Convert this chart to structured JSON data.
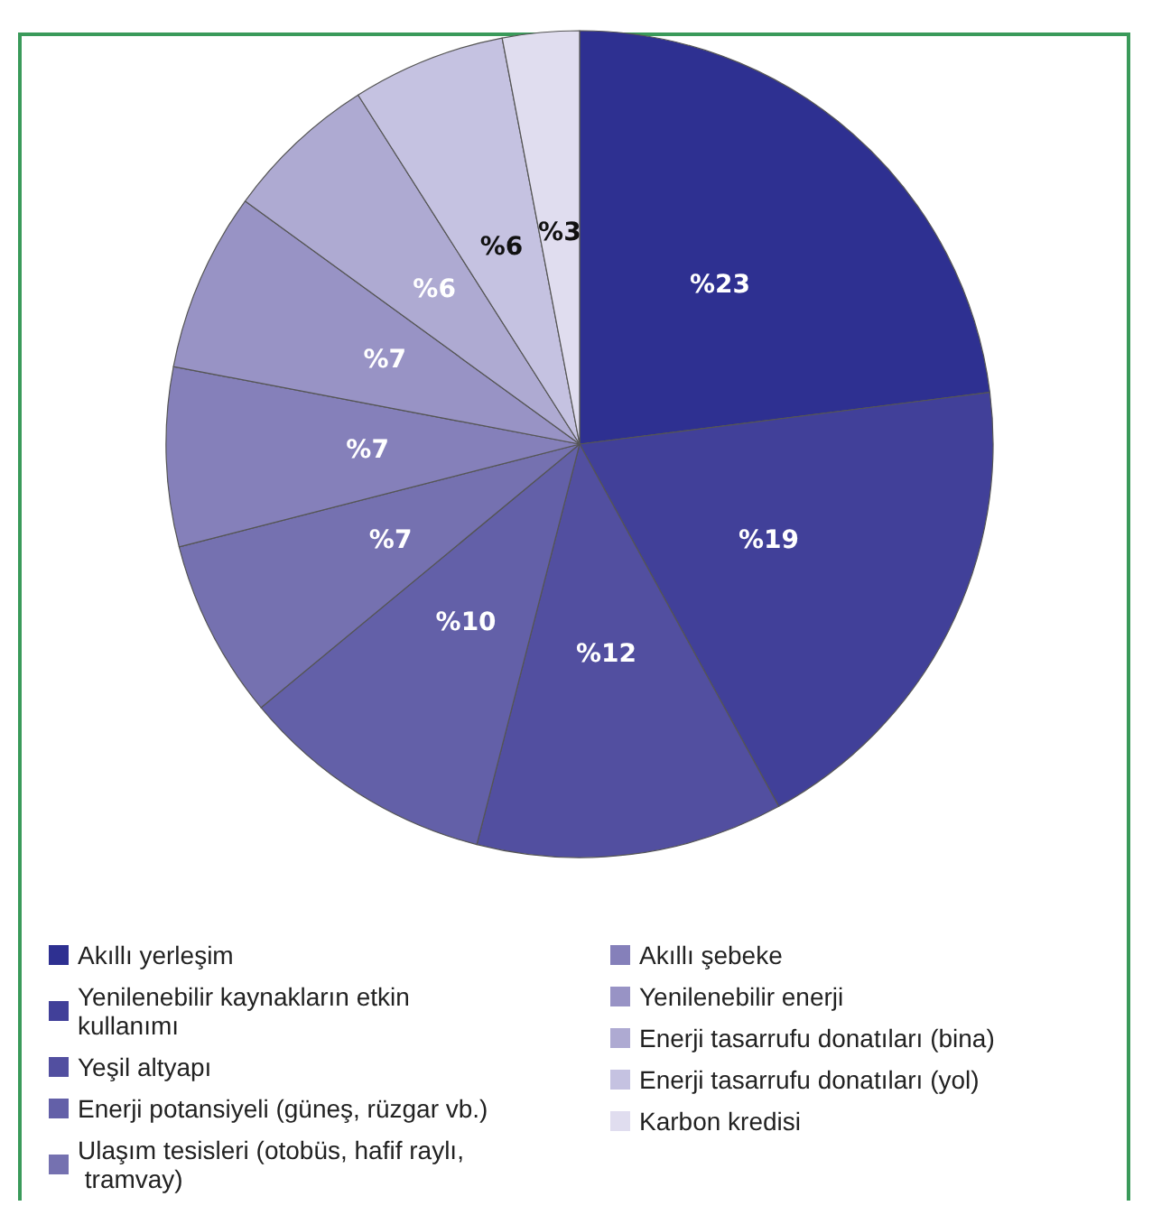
{
  "chart_data": {
    "type": "pie",
    "categories": [
      "Akıllı yerleşim",
      "Yenilenebilir kaynakların etkin kullanımı",
      "Yeşil altyapı",
      "Enerji potansiyeli (güneş, rüzgar vb.)",
      "Ulaşım tesisleri (otobüs, hafif raylı, tramvay)",
      "Akıllı şebeke",
      "Yenilenebilir enerji",
      "Enerji tasarrufu donatıları (bina)",
      "Enerji tasarrufu donatıları (yol)",
      "Karbon kredisi"
    ],
    "values": [
      23,
      19,
      12,
      10,
      7,
      7,
      7,
      6,
      6,
      3
    ],
    "value_labels": [
      "%23",
      "%19",
      "%12",
      "%10",
      "%7",
      "%7",
      "%7",
      "%6",
      "%6",
      "%3"
    ],
    "colors": [
      "#2e3091",
      "#414099",
      "#524fa0",
      "#6360a8",
      "#7571b0",
      "#8580ba",
      "#9893c5",
      "#aeaad2",
      "#c5c2e1",
      "#e0ddef"
    ],
    "legend": "bottom"
  }
}
